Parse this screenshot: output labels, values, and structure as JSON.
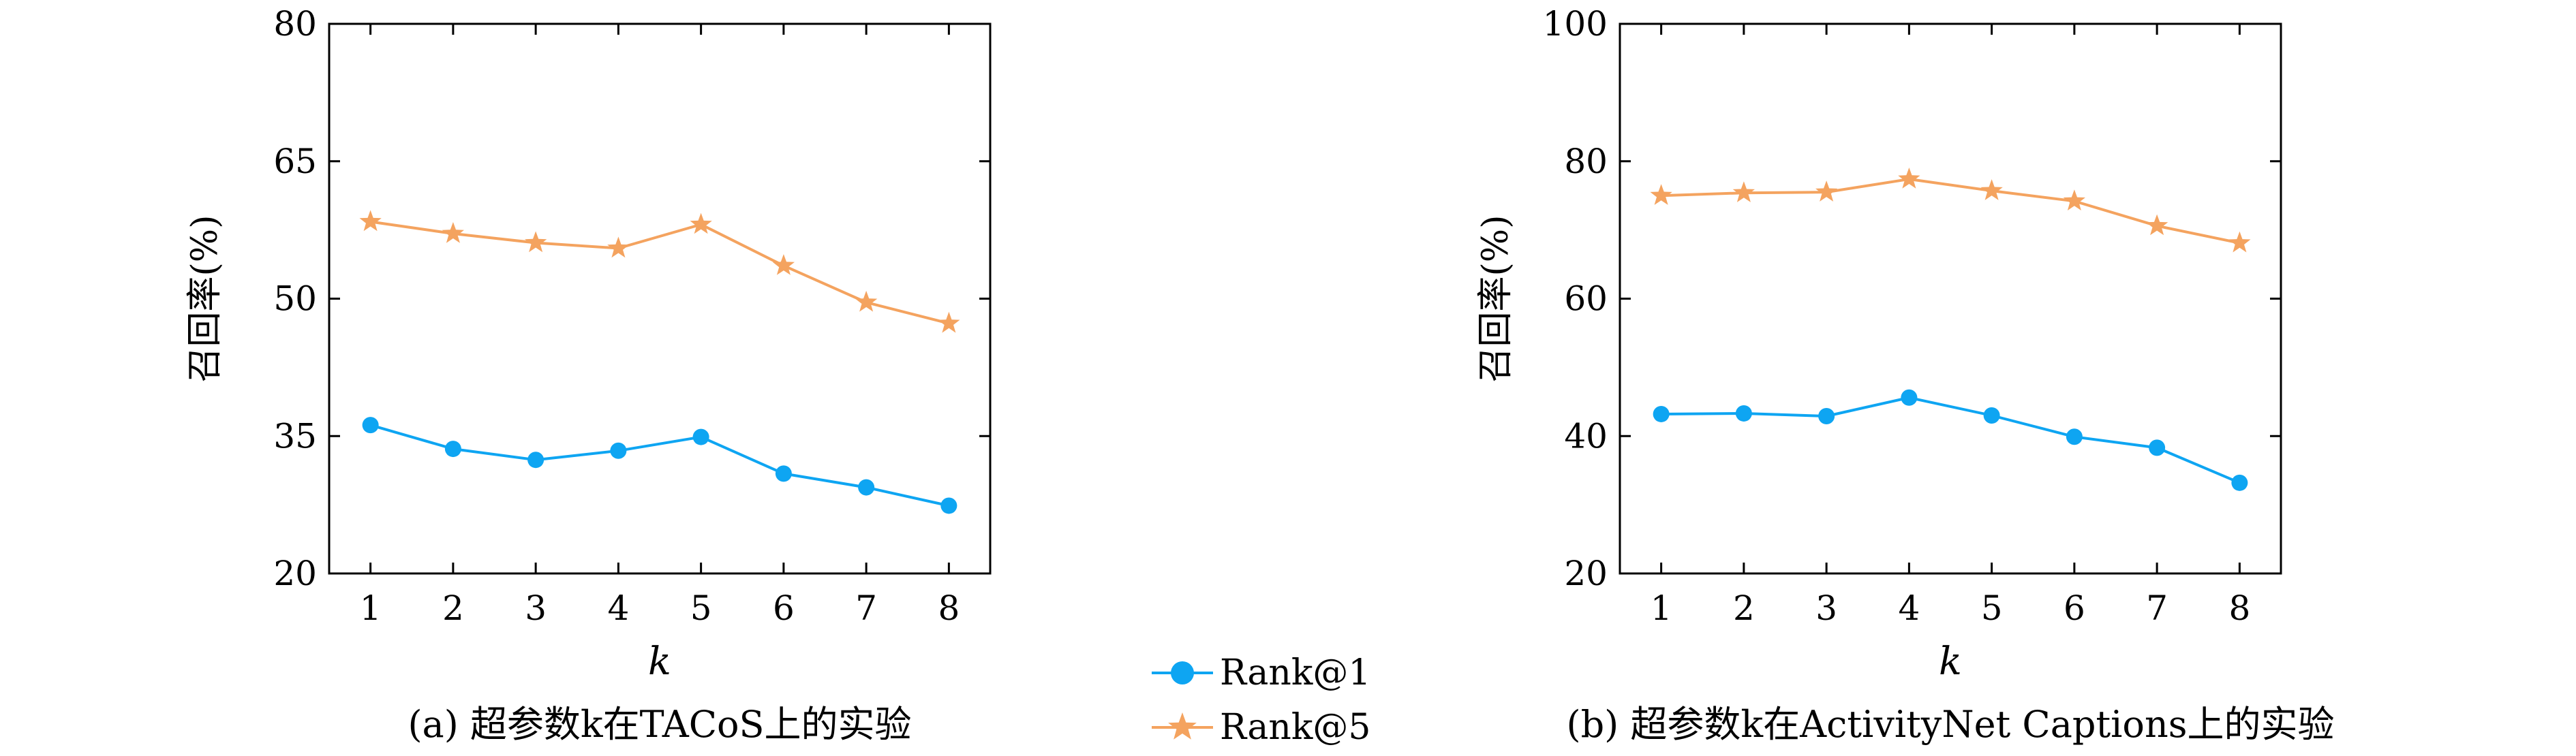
{
  "colors": {
    "rank1": "#0ea5f2",
    "rank5": "#f4a35f",
    "axis": "#000000",
    "background": "#ffffff"
  },
  "legend": {
    "placement": "bottom-center",
    "entries": [
      {
        "label": "Rank@1",
        "marker": "circle",
        "color": "#0ea5f2"
      },
      {
        "label": "Rank@5",
        "marker": "star",
        "color": "#f4a35f"
      }
    ]
  },
  "chart_data": [
    {
      "type": "line",
      "caption": "(a) 超参数k在TACoS上的实验",
      "xlabel": "k",
      "ylabel": "召回率(%)",
      "x": [
        1,
        2,
        3,
        4,
        5,
        6,
        7,
        8
      ],
      "xticks": [
        "1",
        "2",
        "3",
        "4",
        "5",
        "6",
        "7",
        "8"
      ],
      "xlim": [
        0.5,
        8.5
      ],
      "ylim": [
        20,
        80
      ],
      "yticks": [
        20,
        35,
        50,
        65,
        80
      ],
      "grid": false,
      "series": [
        {
          "name": "Rank@1",
          "values": [
            36.2,
            33.6,
            32.4,
            33.4,
            34.9,
            30.9,
            29.4,
            27.4
          ]
        },
        {
          "name": "Rank@5",
          "values": [
            58.4,
            57.1,
            56.1,
            55.5,
            58.1,
            53.6,
            49.6,
            47.3
          ]
        }
      ]
    },
    {
      "type": "line",
      "caption": "(b) 超参数k在ActivityNet Captions上的实验",
      "xlabel": "k",
      "ylabel": "召回率(%)",
      "x": [
        1,
        2,
        3,
        4,
        5,
        6,
        7,
        8
      ],
      "xticks": [
        "1",
        "2",
        "3",
        "4",
        "5",
        "6",
        "7",
        "8"
      ],
      "xlim": [
        0.5,
        8.5
      ],
      "ylim": [
        20,
        100
      ],
      "yticks": [
        20,
        40,
        60,
        80,
        100
      ],
      "grid": false,
      "series": [
        {
          "name": "Rank@1",
          "values": [
            43.2,
            43.3,
            42.9,
            45.6,
            43.0,
            39.9,
            38.3,
            33.2
          ]
        },
        {
          "name": "Rank@5",
          "values": [
            75.0,
            75.4,
            75.5,
            77.4,
            75.7,
            74.2,
            70.6,
            68.1
          ]
        }
      ]
    }
  ]
}
